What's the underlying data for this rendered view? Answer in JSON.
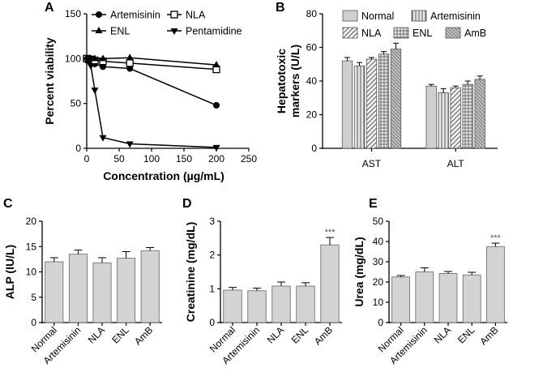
{
  "chart_data": [
    {
      "id": "A",
      "panel_label": "A",
      "type": "line",
      "xlabel": "Concentration (µg/mL)",
      "ylabel": "Percent viability",
      "xlim": [
        0,
        250
      ],
      "ylim": [
        0,
        150
      ],
      "xticks": [
        0,
        50,
        100,
        150,
        200,
        250
      ],
      "yticks": [
        0,
        50,
        100,
        150
      ],
      "legend_position": "top",
      "series": [
        {
          "name": "Artemisinin",
          "marker": "circle",
          "x": [
            0,
            3.125,
            6.25,
            12.5,
            25,
            66.5,
            200
          ],
          "y": [
            100,
            99,
            97,
            94,
            91,
            89,
            48
          ]
        },
        {
          "name": "NLA",
          "marker": "square",
          "x": [
            0,
            3.125,
            6.25,
            12.5,
            25,
            66.5,
            200
          ],
          "y": [
            100,
            99,
            99,
            98,
            97,
            95,
            88
          ]
        },
        {
          "name": "ENL",
          "marker": "triangle-up",
          "x": [
            0,
            3.125,
            6.25,
            12.5,
            25,
            66.5,
            200
          ],
          "y": [
            101,
            100,
            100,
            100,
            100,
            101,
            93
          ]
        },
        {
          "name": "Pentamidine",
          "marker": "triangle-down",
          "x": [
            0,
            3.125,
            6.25,
            12.5,
            25,
            66.5,
            200
          ],
          "y": [
            99,
            97,
            92,
            65,
            12,
            5,
            1
          ]
        }
      ]
    },
    {
      "id": "B",
      "panel_label": "B",
      "type": "bar",
      "ylabel": "Hepatotoxic markers (U/L)",
      "ylabel_lines": [
        "Hepatotoxic",
        "markers (U/L)"
      ],
      "categories": [
        "AST",
        "ALT"
      ],
      "ylim": [
        0,
        80
      ],
      "yticks": [
        0,
        20,
        40,
        60,
        80
      ],
      "legend_position": "top",
      "series": [
        {
          "name": "Normal",
          "pattern": "solid",
          "values": [
            52,
            37
          ],
          "errors": [
            2,
            1
          ]
        },
        {
          "name": "Artemisinin",
          "pattern": "vertical",
          "values": [
            49,
            33
          ],
          "errors": [
            2,
            2.5
          ]
        },
        {
          "name": "NLA",
          "pattern": "diagonal",
          "values": [
            53,
            36
          ],
          "errors": [
            1,
            1
          ]
        },
        {
          "name": "ENL",
          "pattern": "grid",
          "values": [
            56,
            38
          ],
          "errors": [
            1.5,
            2
          ]
        },
        {
          "name": "AmB",
          "pattern": "dense",
          "values": [
            59,
            41
          ],
          "errors": [
            3.5,
            2
          ]
        }
      ]
    },
    {
      "id": "C",
      "panel_label": "C",
      "type": "bar",
      "ylabel": "ALP (IU/L)",
      "categories": [
        "Normal",
        "Artemisinin",
        "NLA",
        "ENL",
        "AmB"
      ],
      "values": [
        12.0,
        13.5,
        11.8,
        12.7,
        14.2
      ],
      "errors": [
        0.8,
        0.8,
        1.0,
        1.3,
        0.6
      ],
      "ylim": [
        0,
        20
      ],
      "yticks": [
        0,
        5,
        10,
        15,
        20
      ],
      "annotations": [
        "",
        "",
        "",
        "",
        ""
      ]
    },
    {
      "id": "D",
      "panel_label": "D",
      "type": "bar",
      "ylabel": "Creatinine (mg/dL)",
      "categories": [
        "Normal",
        "Artemisinin",
        "NLA",
        "ENL",
        "AmB"
      ],
      "values": [
        0.96,
        0.94,
        1.08,
        1.08,
        2.3
      ],
      "errors": [
        0.08,
        0.08,
        0.12,
        0.1,
        0.22
      ],
      "ylim": [
        0,
        3
      ],
      "yticks": [
        0,
        1,
        2,
        3
      ],
      "annotations": [
        "",
        "",
        "",
        "",
        "***"
      ]
    },
    {
      "id": "E",
      "panel_label": "E",
      "type": "bar",
      "ylabel": "Urea (mg/dL)",
      "categories": [
        "Normal",
        "Artemisinin",
        "NLA",
        "ENL",
        "AmB"
      ],
      "values": [
        22.5,
        25.0,
        24.2,
        23.5,
        37.5
      ],
      "errors": [
        0.7,
        2.0,
        1.0,
        1.3,
        1.7
      ],
      "ylim": [
        0,
        50
      ],
      "yticks": [
        0,
        10,
        20,
        30,
        40,
        50
      ],
      "annotations": [
        "",
        "",
        "",
        "",
        "***"
      ]
    }
  ]
}
